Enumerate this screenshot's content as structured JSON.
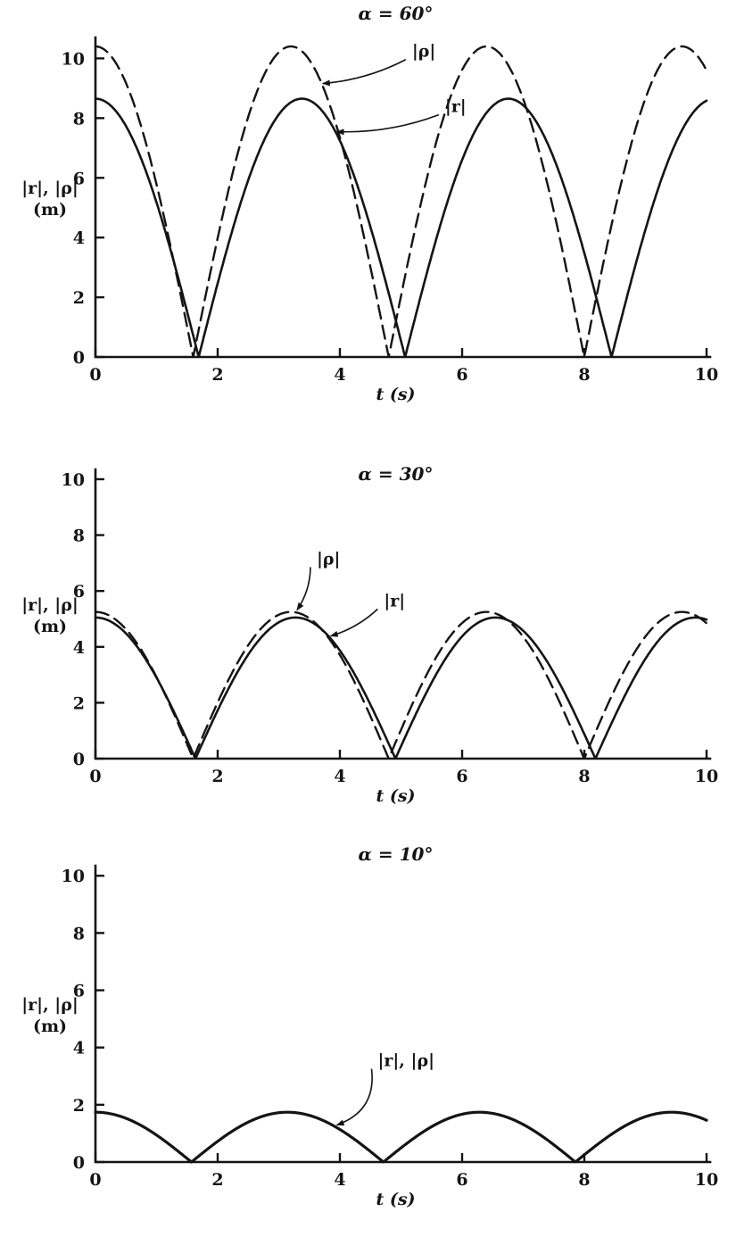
{
  "page": {
    "background": "#ffffff",
    "ink": "#141414"
  },
  "chart_data": [
    {
      "type": "line",
      "title": "α = 60°",
      "xlabel": "t (s)",
      "ylabel": "|r|, |ρ| (m)",
      "ylabel_lines": [
        "|r|, |ρ|",
        "(m)"
      ],
      "xlim": [
        0,
        10
      ],
      "ylim": [
        0,
        10.7
      ],
      "xticks": [
        0,
        2,
        4,
        6,
        8,
        10
      ],
      "yticks": [
        0,
        2,
        4,
        6,
        8,
        10
      ],
      "grid": false,
      "legend": "inline-annotations",
      "series": [
        {
          "name": "|ρ|",
          "line": "dashed",
          "model": "abs_cos",
          "amplitude": 10.4,
          "omega": 0.982,
          "value_at_t0": 10.4,
          "zeros_t": [
            1.6,
            4.8,
            8.0
          ],
          "peaks": [
            [
              0,
              10.4
            ],
            [
              3.2,
              10.4
            ],
            [
              6.4,
              10.35
            ],
            [
              9.6,
              10.35
            ]
          ]
        },
        {
          "name": "|r|",
          "line": "solid",
          "model": "abs_cos",
          "amplitude": 8.65,
          "omega": 0.93,
          "value_at_t0": 8.7,
          "zeros_t": [
            1.69,
            5.07,
            8.45
          ],
          "peaks": [
            [
              0,
              8.7
            ],
            [
              3.38,
              8.6
            ],
            [
              6.76,
              8.5
            ]
          ]
        }
      ],
      "annotations": [
        {
          "text": "|ρ|",
          "label_at": [
            5.18,
            10.05
          ],
          "series": 0,
          "target_t": 3.72,
          "bow": 0.1
        },
        {
          "text": "|r|",
          "label_at": [
            5.72,
            8.2
          ],
          "series": 1,
          "target_t": 3.95,
          "bow": 0.1
        }
      ]
    },
    {
      "type": "line",
      "title": "α = 30°",
      "xlabel": "t (s)",
      "ylabel": "|r|, |ρ| (m)",
      "ylabel_lines": [
        "|r|, |ρ|",
        "(m)"
      ],
      "xlim": [
        0,
        10
      ],
      "ylim": [
        0,
        10.35
      ],
      "xticks": [
        0,
        2,
        4,
        6,
        8,
        10
      ],
      "yticks": [
        0,
        2,
        4,
        6,
        8,
        10
      ],
      "grid": false,
      "legend": "inline-annotations",
      "series": [
        {
          "name": "|ρ|",
          "line": "dashed",
          "model": "abs_cos",
          "amplitude": 5.25,
          "omega": 0.982,
          "value_at_t0": 5.25,
          "zeros_t": [
            1.6,
            4.8,
            8.0
          ],
          "peaks": [
            [
              0,
              5.25
            ],
            [
              3.2,
              5.25
            ],
            [
              6.4,
              5.2
            ],
            [
              9.6,
              5.2
            ]
          ]
        },
        {
          "name": "|r|",
          "line": "solid",
          "model": "abs_cos",
          "amplitude": 5.05,
          "omega": 0.96,
          "value_at_t0": 5.0,
          "zeros_t": [
            1.64,
            4.91,
            8.18
          ],
          "peaks": [
            [
              0,
              5.0
            ],
            [
              3.27,
              5.0
            ],
            [
              6.54,
              4.95
            ],
            [
              9.8,
              4.9
            ]
          ]
        }
      ],
      "annotations": [
        {
          "text": "|ρ|",
          "label_at": [
            3.62,
            6.95
          ],
          "series": 0,
          "target_t": 3.3,
          "bow": 0.15
        },
        {
          "text": "|r|",
          "label_at": [
            4.72,
            5.45
          ],
          "series": 1,
          "target_t": 3.85,
          "bow": 0.12
        }
      ]
    },
    {
      "type": "line",
      "title": "α = 10°",
      "xlabel": "t (s)",
      "ylabel": "|r|, |ρ| (m)",
      "ylabel_lines": [
        "|r|, |ρ|",
        "(m)"
      ],
      "xlim": [
        0,
        10
      ],
      "ylim": [
        0,
        10.35
      ],
      "xticks": [
        0,
        2,
        4,
        6,
        8,
        10
      ],
      "yticks": [
        0,
        2,
        4,
        6,
        8,
        10
      ],
      "grid": false,
      "legend": "inline-annotations",
      "series": [
        {
          "name": "|r|, |ρ|",
          "line": "solid",
          "model": "abs_cos",
          "amplitude": 1.74,
          "omega": 1.0,
          "value_at_t0": 1.7,
          "zeros_t": [
            1.57,
            4.71,
            7.85
          ],
          "peaks": [
            [
              0,
              1.7
            ],
            [
              3.14,
              1.75
            ],
            [
              6.28,
              1.75
            ],
            [
              9.42,
              1.75
            ]
          ]
        }
      ],
      "annotations": [
        {
          "text": "|r|, |ρ|",
          "label_at": [
            4.62,
            3.35
          ],
          "series": 0,
          "target_t": 3.95,
          "bow": 0.4
        }
      ]
    }
  ]
}
